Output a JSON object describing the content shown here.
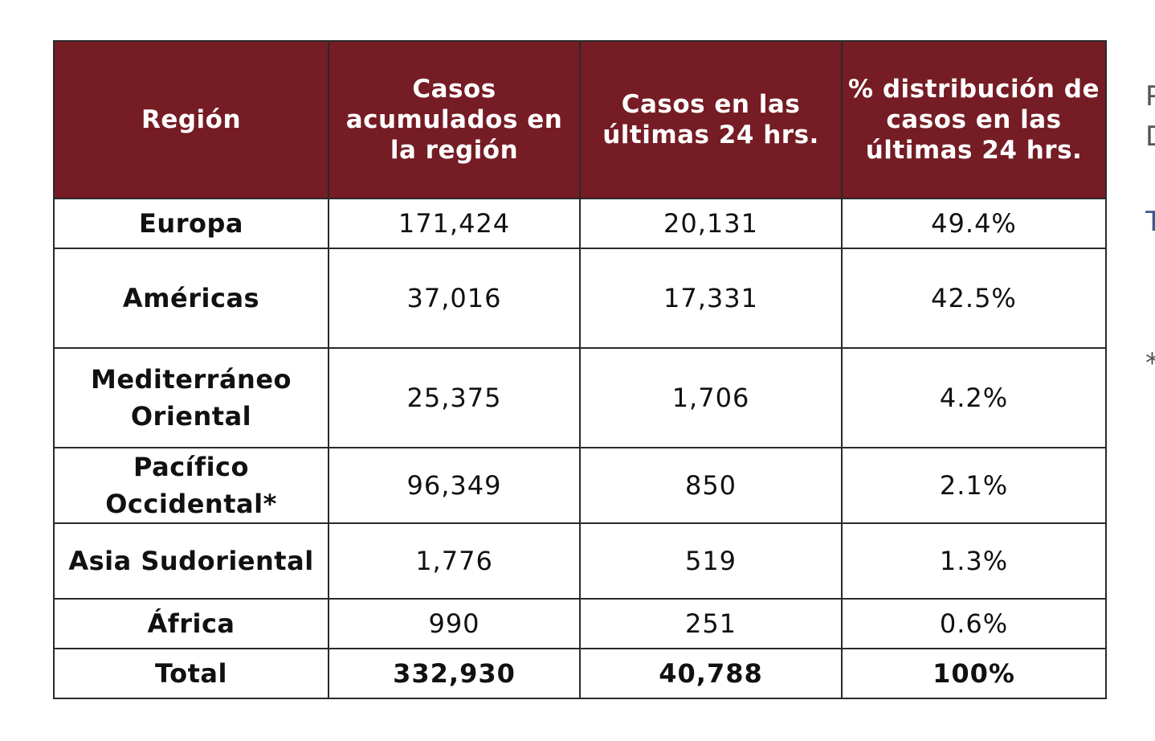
{
  "table": {
    "headers": [
      "Región",
      "Casos acumulados en la región",
      "Casos en las últimas 24 hrs.",
      "% distribución de casos en las últimas 24 hrs."
    ],
    "rows": [
      {
        "region": "Europa",
        "acumulados": "171,424",
        "ultimas24": "20,131",
        "porcentaje": "49.4%"
      },
      {
        "region": "Américas",
        "acumulados": "37,016",
        "ultimas24": "17,331",
        "porcentaje": "42.5%"
      },
      {
        "region": "Mediterráneo Oriental",
        "acumulados": "25,375",
        "ultimas24": "1,706",
        "porcentaje": "4.2%"
      },
      {
        "region": "Pacífico Occidental*",
        "acumulados": "96,349",
        "ultimas24": "850",
        "porcentaje": "2.1%"
      },
      {
        "region": "Asia Sudoriental",
        "acumulados": "1,776",
        "ultimas24": "519",
        "porcentaje": "1.3%"
      },
      {
        "region": "África",
        "acumulados": "990",
        "ultimas24": "251",
        "porcentaje": "0.6%"
      }
    ],
    "total": {
      "region": "Total",
      "acumulados": "332,930",
      "ultimas24": "40,788",
      "porcentaje": "100%"
    }
  },
  "side_fragments": [
    "P",
    "D",
    "T",
    "*"
  ],
  "colors": {
    "header_bg": "#751c24",
    "header_text": "#ffffff",
    "border": "#2a2a2a"
  }
}
